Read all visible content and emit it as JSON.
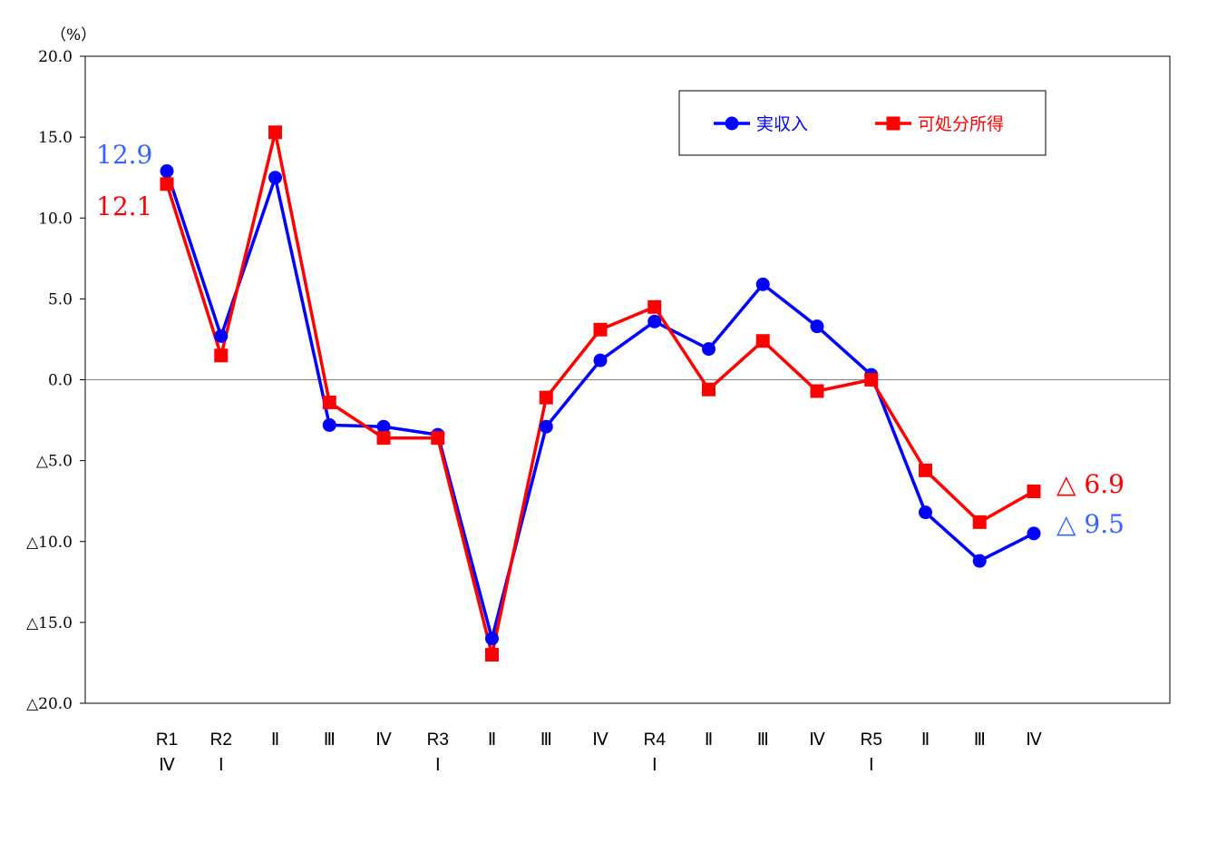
{
  "chart_data": {
    "type": "line",
    "y_unit_label": "（%）",
    "ylim": [
      -20,
      20
    ],
    "y_ticks": [
      {
        "value": 20,
        "label": "20.0"
      },
      {
        "value": 15,
        "label": "15.0"
      },
      {
        "value": 10,
        "label": "10.0"
      },
      {
        "value": 5,
        "label": "5.0"
      },
      {
        "value": 0,
        "label": "0.0"
      },
      {
        "value": -5,
        "label": "△5.0"
      },
      {
        "value": -10,
        "label": "△10.0"
      },
      {
        "value": -15,
        "label": "△15.0"
      },
      {
        "value": -20,
        "label": "△20.0"
      }
    ],
    "categories": [
      {
        "line1": "R1",
        "line2": "Ⅳ"
      },
      {
        "line1": "R2",
        "line2": "Ⅰ"
      },
      {
        "line1": "Ⅱ",
        "line2": ""
      },
      {
        "line1": "Ⅲ",
        "line2": ""
      },
      {
        "line1": "Ⅳ",
        "line2": ""
      },
      {
        "line1": "R3",
        "line2": "Ⅰ"
      },
      {
        "line1": "Ⅱ",
        "line2": ""
      },
      {
        "line1": "Ⅲ",
        "line2": ""
      },
      {
        "line1": "Ⅳ",
        "line2": ""
      },
      {
        "line1": "R4",
        "line2": "Ⅰ"
      },
      {
        "line1": "Ⅱ",
        "line2": ""
      },
      {
        "line1": "Ⅲ",
        "line2": ""
      },
      {
        "line1": "Ⅳ",
        "line2": ""
      },
      {
        "line1": "R5",
        "line2": "Ⅰ"
      },
      {
        "line1": "Ⅱ",
        "line2": ""
      },
      {
        "line1": "Ⅲ",
        "line2": ""
      },
      {
        "line1": "Ⅳ",
        "line2": ""
      }
    ],
    "series": [
      {
        "name": "実収入",
        "color": "#0000ff",
        "marker": "circle",
        "values": [
          12.9,
          2.7,
          12.5,
          -2.8,
          -2.9,
          -3.4,
          -16.0,
          -2.9,
          1.2,
          3.6,
          1.9,
          5.9,
          3.3,
          0.3,
          -8.2,
          -11.2,
          -9.5
        ]
      },
      {
        "name": "可処分所得",
        "color": "#ff0000",
        "marker": "square",
        "values": [
          12.1,
          1.5,
          15.3,
          -1.4,
          -3.6,
          -3.6,
          -17.0,
          -1.1,
          3.1,
          4.5,
          -0.6,
          2.4,
          -0.7,
          0.0,
          -5.6,
          -8.8,
          -6.9
        ]
      }
    ],
    "callouts": [
      {
        "text": "12.9",
        "series": 0,
        "color": "#3366ff"
      },
      {
        "text": "12.1",
        "series": 1,
        "color": "#ff0000"
      },
      {
        "text": "△ 6.9",
        "series": 1,
        "color": "#ff0000"
      },
      {
        "text": "△ 9.5",
        "series": 0,
        "color": "#3366ff"
      }
    ],
    "legend": {
      "position": "top-right"
    },
    "zero_line": true
  }
}
